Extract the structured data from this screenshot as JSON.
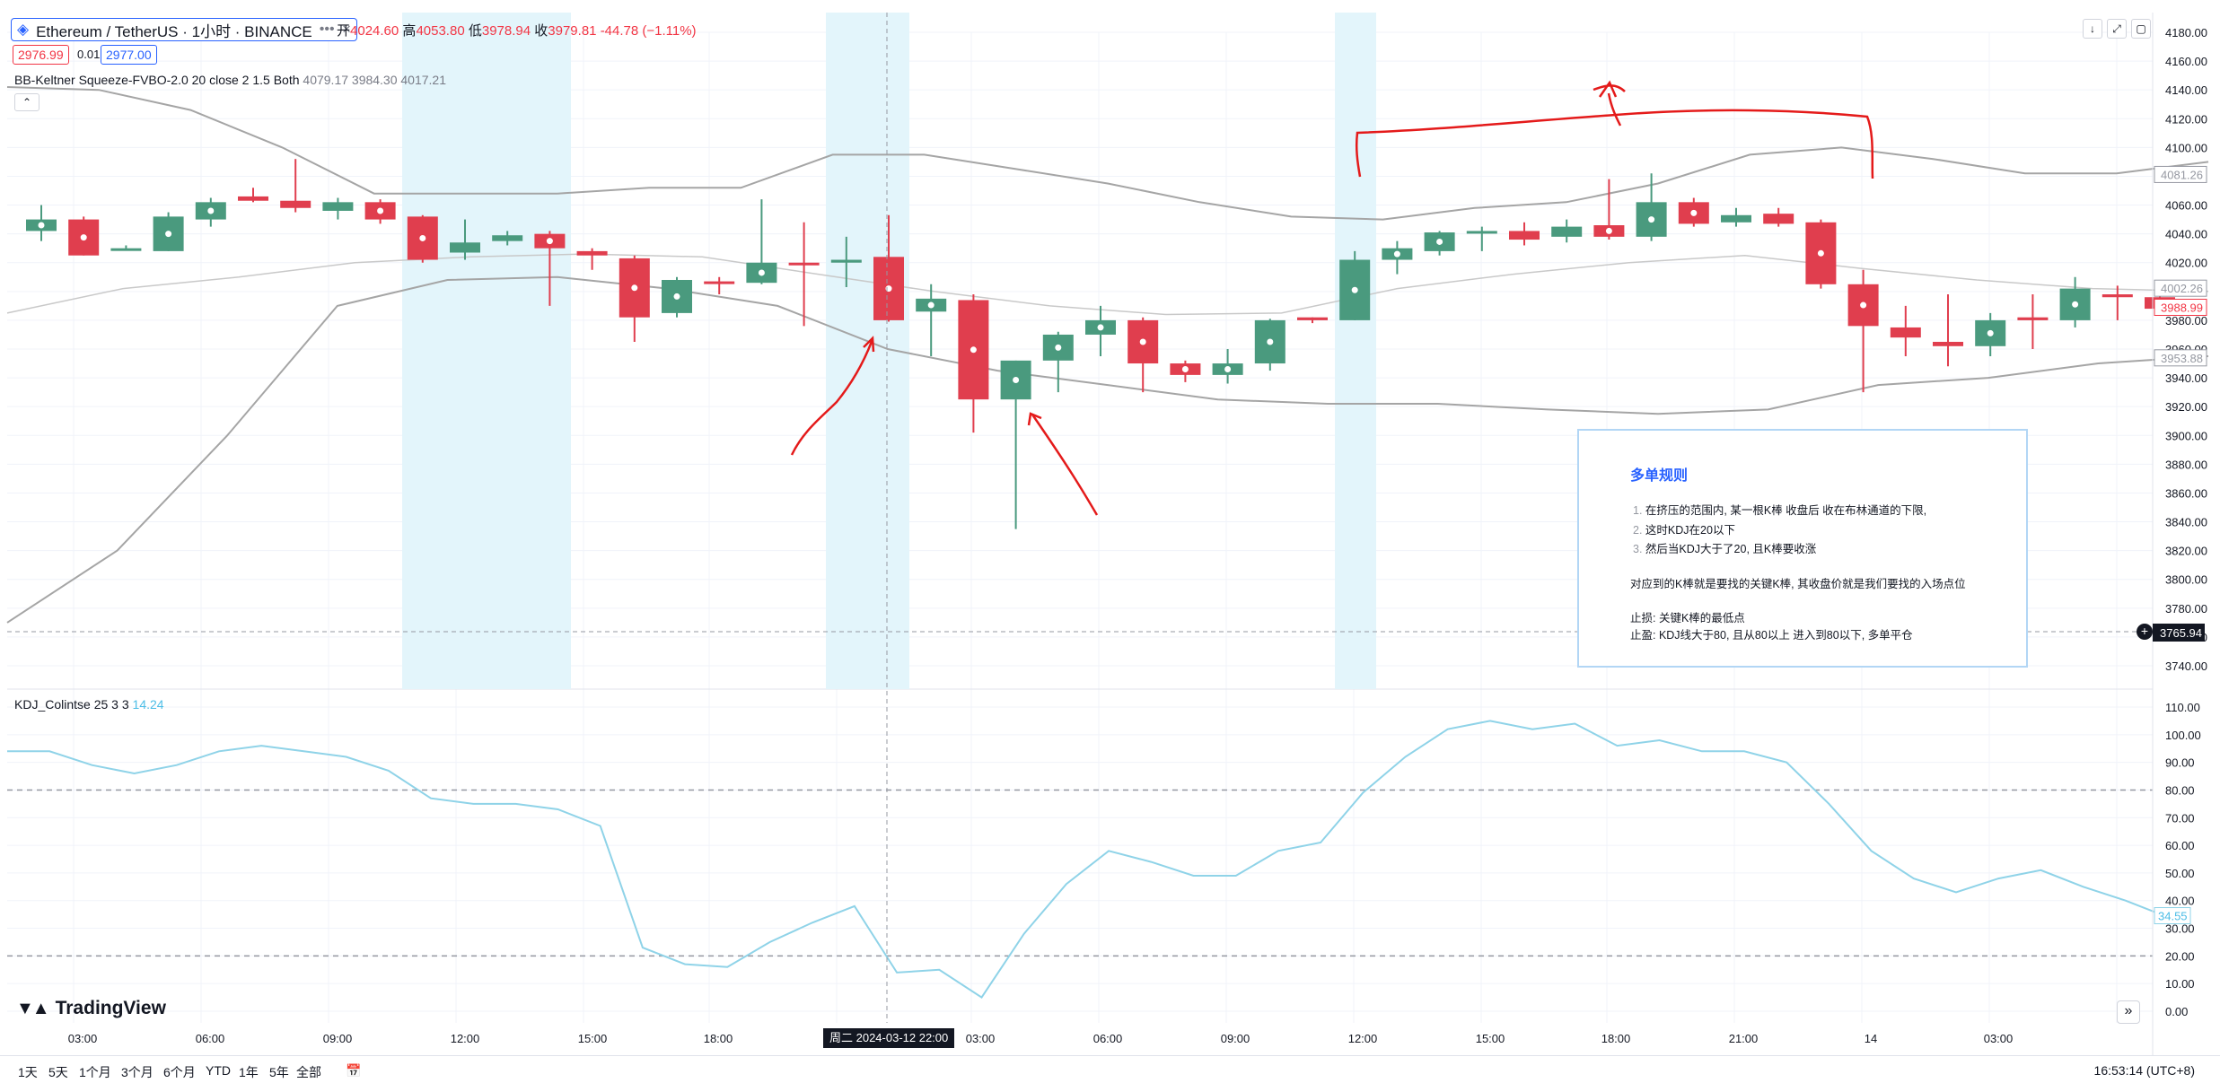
{
  "symbol": {
    "title": "Ethereum / TetherUS · 1小时 · BINANCE",
    "icon": "ethereum-icon"
  },
  "ohlc": {
    "o_label": "开",
    "o": "4024.60",
    "h_label": "高",
    "h": "4053.80",
    "l_label": "低",
    "l": "3978.94",
    "c_label": "收",
    "c": "3979.81",
    "change": "-44.78 (−1.11%)"
  },
  "quote": {
    "sell": "2976.99",
    "spread": "0.01",
    "buy": "2977.00"
  },
  "indicator_main": {
    "name": "BB-Keltner Squeeze-FVBO-2.0 20 close 2 1.5 Both",
    "values": "4079.17  3984.30  4017.21"
  },
  "indicator_sub": {
    "name": "KDJ_Colintse 25 3 3",
    "value": "14.24"
  },
  "note": {
    "title": "多单规则",
    "items": [
      {
        "n": "1.",
        "t": "在挤压的范围内, 某一根K棒 收盘后 收在布林通道的下限,"
      },
      {
        "n": "2.",
        "t": "这时KDJ在20以下"
      },
      {
        "n": "3.",
        "t": "然后当KDJ大于了20, 且K棒要收涨"
      }
    ],
    "para": "对应到的K棒就是要找的关键K棒, 其收盘价就是我们要找的入场点位",
    "stop_loss": "止损: 关键K棒的最低点",
    "take_profit": "止盈: KDJ线大于80, 且从80以上 进入到80以下, 多单平仓"
  },
  "price_axis": {
    "ticks": [
      "4180.00",
      "4160.00",
      "4140.00",
      "4120.00",
      "4100.00",
      "4080.00",
      "4060.00",
      "4040.00",
      "4020.00",
      "4000.00",
      "3980.00",
      "3960.00",
      "3940.00",
      "3920.00",
      "3900.00",
      "3880.00",
      "3860.00",
      "3840.00",
      "3820.00",
      "3800.00",
      "3780.00",
      "3760.00",
      "3740.00"
    ],
    "labels": {
      "upper": "4081.26",
      "mid": "4002.26",
      "current": "3988.99",
      "lower": "3953.88",
      "crosshair": "3765.94"
    },
    "colors": {
      "upper": "#9598a1",
      "mid": "#9598a1",
      "current": "#f23645",
      "lower": "#9598a1",
      "crosshair": "#131722"
    }
  },
  "kdj_axis": {
    "ticks": [
      "110.00",
      "100.00",
      "90.00",
      "80.00",
      "70.00",
      "60.00",
      "50.00",
      "40.00",
      "30.00",
      "20.00",
      "10.00",
      "0.00"
    ],
    "label": "34.55"
  },
  "time_axis": {
    "labels": [
      "03:00",
      "06:00",
      "09:00",
      "12:00",
      "15:00",
      "18:00",
      "13",
      "03:00",
      "06:00",
      "09:00",
      "12:00",
      "15:00",
      "18:00",
      "21:00",
      "14",
      "03:00"
    ],
    "crosshair": "周二 2024-03-12   22:00"
  },
  "bottom_bar": {
    "periods": [
      "1天",
      "5天",
      "1个月",
      "3个月",
      "6个月",
      "YTD",
      "1年",
      "5年",
      "全部"
    ],
    "clock": "16:53:14 (UTC+8)"
  },
  "brand": "TradingView",
  "colors": {
    "up": "#4a9a7e",
    "down": "#e03e4e",
    "kdj": "#8fd3e8",
    "band": "#a5a5a5",
    "mid": "#c9c9c9",
    "squeeze": "#e3f5fb",
    "accent": "#2962ff"
  },
  "chart_data": [
    {
      "type": "candlestick",
      "title": "Ethereum / TetherUS · 1小时 · BINANCE",
      "ylim": [
        3730,
        4190
      ],
      "candles": [
        {
          "o": 4042,
          "h": 4060,
          "l": 4035,
          "c": 4050
        },
        {
          "o": 4050,
          "h": 4052,
          "l": 4025,
          "c": 4025
        },
        {
          "o": 4030,
          "h": 4032,
          "l": 4029,
          "c": 4030
        },
        {
          "o": 4028,
          "h": 4055,
          "l": 4028,
          "c": 4052
        },
        {
          "o": 4050,
          "h": 4065,
          "l": 4045,
          "c": 4062
        },
        {
          "o": 4066,
          "h": 4072,
          "l": 4062,
          "c": 4063
        },
        {
          "o": 4063,
          "h": 4092,
          "l": 4055,
          "c": 4058
        },
        {
          "o": 4056,
          "h": 4065,
          "l": 4050,
          "c": 4062
        },
        {
          "o": 4062,
          "h": 4064,
          "l": 4047,
          "c": 4050
        },
        {
          "o": 4052,
          "h": 4053,
          "l": 4020,
          "c": 4022
        },
        {
          "o": 4027,
          "h": 4050,
          "l": 4022,
          "c": 4034
        },
        {
          "o": 4035,
          "h": 4042,
          "l": 4032,
          "c": 4039
        },
        {
          "o": 4040,
          "h": 4042,
          "l": 3990,
          "c": 4030
        },
        {
          "o": 4028,
          "h": 4030,
          "l": 4015,
          "c": 4025
        },
        {
          "o": 4023,
          "h": 4025,
          "l": 3965,
          "c": 3982
        },
        {
          "o": 3985,
          "h": 4010,
          "l": 3982,
          "c": 4008
        },
        {
          "o": 4007,
          "h": 4010,
          "l": 3998,
          "c": 4006
        },
        {
          "o": 4006,
          "h": 4064,
          "l": 4005,
          "c": 4020
        },
        {
          "o": 4020,
          "h": 4048,
          "l": 3976,
          "c": 4019
        },
        {
          "o": 4020,
          "h": 4038,
          "l": 4003,
          "c": 4022
        },
        {
          "o": 4024,
          "h": 4053,
          "l": 3979,
          "c": 3980
        },
        {
          "o": 3986,
          "h": 4005,
          "l": 3955,
          "c": 3995
        },
        {
          "o": 3994,
          "h": 3998,
          "l": 3902,
          "c": 3925
        },
        {
          "o": 3925,
          "h": 3952,
          "l": 3835,
          "c": 3952
        },
        {
          "o": 3952,
          "h": 3972,
          "l": 3930,
          "c": 3970
        },
        {
          "o": 3970,
          "h": 3990,
          "l": 3955,
          "c": 3980
        },
        {
          "o": 3980,
          "h": 3982,
          "l": 3930,
          "c": 3950
        },
        {
          "o": 3950,
          "h": 3952,
          "l": 3937,
          "c": 3942
        },
        {
          "o": 3942,
          "h": 3960,
          "l": 3936,
          "c": 3950
        },
        {
          "o": 3950,
          "h": 3981,
          "l": 3945,
          "c": 3980
        },
        {
          "o": 3982,
          "h": 3982,
          "l": 3978,
          "c": 3980
        },
        {
          "o": 3980,
          "h": 4028,
          "l": 3980,
          "c": 4022
        },
        {
          "o": 4022,
          "h": 4035,
          "l": 4012,
          "c": 4030
        },
        {
          "o": 4028,
          "h": 4042,
          "l": 4025,
          "c": 4041
        },
        {
          "o": 4042,
          "h": 4045,
          "l": 4028,
          "c": 4042
        },
        {
          "o": 4042,
          "h": 4048,
          "l": 4032,
          "c": 4036
        },
        {
          "o": 4038,
          "h": 4050,
          "l": 4034,
          "c": 4045
        },
        {
          "o": 4046,
          "h": 4078,
          "l": 4036,
          "c": 4038
        },
        {
          "o": 4038,
          "h": 4082,
          "l": 4035,
          "c": 4062
        },
        {
          "o": 4062,
          "h": 4065,
          "l": 4045,
          "c": 4047
        },
        {
          "o": 4048,
          "h": 4058,
          "l": 4045,
          "c": 4053
        },
        {
          "o": 4054,
          "h": 4058,
          "l": 4045,
          "c": 4047
        },
        {
          "o": 4048,
          "h": 4050,
          "l": 4002,
          "c": 4005
        },
        {
          "o": 4005,
          "h": 4015,
          "l": 3930,
          "c": 3976
        },
        {
          "o": 3975,
          "h": 3990,
          "l": 3955,
          "c": 3968
        },
        {
          "o": 3965,
          "h": 3998,
          "l": 3948,
          "c": 3962
        },
        {
          "o": 3962,
          "h": 3985,
          "l": 3955,
          "c": 3980
        },
        {
          "o": 3982,
          "h": 3998,
          "l": 3960,
          "c": 3980
        },
        {
          "o": 3980,
          "h": 4010,
          "l": 3975,
          "c": 4002
        },
        {
          "o": 3998,
          "h": 4004,
          "l": 3980,
          "c": 3996
        },
        {
          "o": 3996,
          "h": 4002,
          "l": 3985,
          "c": 3988
        }
      ],
      "upper_band": [
        4142,
        4140,
        4126,
        4100,
        4068,
        4068,
        4068,
        4072,
        4072,
        4095,
        4095,
        4085,
        4075,
        4062,
        4052,
        4050,
        4058,
        4062,
        4075,
        4095,
        4100,
        4092,
        4082,
        4082,
        4090
      ],
      "middle_band": [
        3985,
        4002,
        4010,
        4020,
        4024,
        4026,
        4024,
        4012,
        4000,
        3990,
        3984,
        3985,
        4002,
        4012,
        4020,
        4025,
        4016,
        4008,
        4002,
        4000
      ],
      "lower_band": [
        3770,
        3820,
        3900,
        3990,
        4008,
        4010,
        4002,
        3990,
        3960,
        3945,
        3935,
        3925,
        3922,
        3922,
        3918,
        3915,
        3918,
        3935,
        3940,
        3950,
        3955
      ],
      "squeeze_zones": [
        "09:00 → 15:00",
        "21:00 → 22:00",
        "08:00 → 09:00"
      ]
    },
    {
      "type": "line",
      "title": "KDJ_Colintse 25 3 3",
      "ylim": [
        0,
        110
      ],
      "reference_lines": [
        80,
        20
      ],
      "values": [
        94,
        94,
        89,
        86,
        89,
        94,
        96,
        94,
        92,
        87,
        77,
        75,
        75,
        73,
        67,
        23,
        17,
        16,
        25,
        32,
        38,
        14,
        15,
        5,
        28,
        46,
        58,
        54,
        49,
        49,
        58,
        61,
        79,
        92,
        102,
        105,
        102,
        104,
        96,
        98,
        94,
        94,
        90,
        75,
        58,
        48,
        43,
        48,
        51,
        45,
        40,
        34
      ]
    }
  ]
}
